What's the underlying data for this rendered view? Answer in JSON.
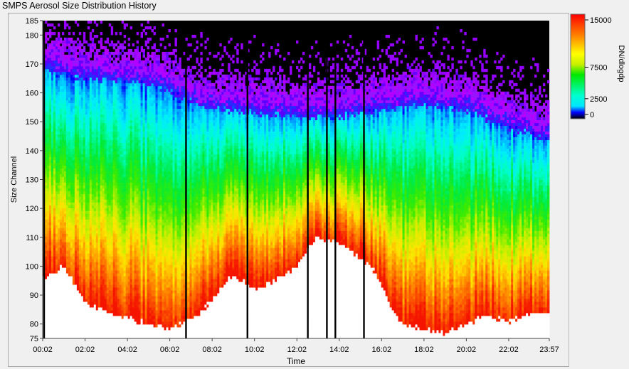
{
  "title": "SMPS Aerosol Size Distribution History",
  "chart_data": {
    "type": "heatmap",
    "title": "SMPS Aerosol Size Distribution History",
    "xlabel": "Time",
    "ylabel": "Size Channel",
    "x_tick_labels": [
      "00:02",
      "02:02",
      "04:02",
      "06:02",
      "08:02",
      "10:02",
      "12:02",
      "14:02",
      "16:02",
      "18:02",
      "20:02",
      "22:02",
      "23:57"
    ],
    "y_tick_labels": [
      "75",
      "80",
      "90",
      "100",
      "110",
      "120",
      "130",
      "140",
      "150",
      "160",
      "170",
      "180",
      "185"
    ],
    "ylim": [
      75,
      185
    ],
    "colorbar": {
      "label": "DN/dlogdp",
      "tick_labels": [
        "0",
        "2500",
        "7500",
        "15000"
      ],
      "range": [
        0,
        15000
      ]
    },
    "mode_peak_upper_edge": {
      "description_units": "hour vs size channel",
      "points": [
        [
          0.2,
          170
        ],
        [
          2,
          167
        ],
        [
          4,
          166
        ],
        [
          6,
          163
        ],
        [
          7.5,
          157
        ],
        [
          9,
          156
        ],
        [
          10,
          155
        ],
        [
          12,
          154
        ],
        [
          14,
          154
        ],
        [
          16,
          156
        ],
        [
          18,
          158
        ],
        [
          20,
          156
        ],
        [
          22,
          150
        ],
        [
          23.9,
          146
        ]
      ]
    },
    "saturated_region_edge": {
      "points": [
        [
          0.2,
          96
        ],
        [
          1,
          100
        ],
        [
          2,
          88
        ],
        [
          3,
          84
        ],
        [
          5,
          80
        ],
        [
          6,
          78
        ],
        [
          7.2,
          82
        ],
        [
          8.2,
          90
        ],
        [
          9,
          97
        ],
        [
          10,
          92
        ],
        [
          11,
          95
        ],
        [
          12,
          100
        ],
        [
          13,
          110
        ],
        [
          14,
          108
        ],
        [
          15,
          103
        ],
        [
          15.8,
          98
        ],
        [
          16.5,
          85
        ],
        [
          17,
          80
        ],
        [
          19,
          77
        ],
        [
          20,
          80
        ],
        [
          21,
          83
        ],
        [
          22,
          81
        ],
        [
          23.2,
          84
        ],
        [
          23.9,
          84
        ]
      ]
    },
    "gaps_hours": [
      0.1,
      6.8,
      9.7,
      12.55,
      13.45,
      13.85,
      15.2
    ]
  }
}
